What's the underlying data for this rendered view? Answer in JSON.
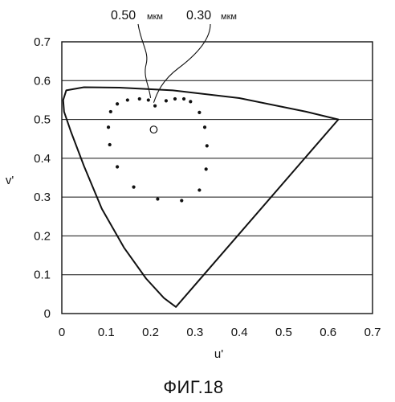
{
  "chart_data": {
    "type": "scatter",
    "title": "",
    "xlabel": "u'",
    "ylabel": "v'",
    "xlim": [
      0,
      0.7
    ],
    "ylim": [
      0,
      0.7
    ],
    "x_ticks": [
      "0",
      "0.1",
      "0.2",
      "0.3",
      "0.4",
      "0.5",
      "0.6",
      "0.7"
    ],
    "y_ticks": [
      "0",
      "0.1",
      "0.2",
      "0.3",
      "0.4",
      "0.5",
      "0.6",
      "0.7"
    ],
    "grid": "horizontal",
    "locus_boundary": [
      [
        0.257,
        0.017
      ],
      [
        0.23,
        0.04
      ],
      [
        0.19,
        0.09
      ],
      [
        0.14,
        0.17
      ],
      [
        0.09,
        0.27
      ],
      [
        0.05,
        0.38
      ],
      [
        0.02,
        0.47
      ],
      [
        0.005,
        0.52
      ],
      [
        0.003,
        0.55
      ],
      [
        0.01,
        0.575
      ],
      [
        0.05,
        0.583
      ],
      [
        0.13,
        0.582
      ],
      [
        0.25,
        0.575
      ],
      [
        0.4,
        0.555
      ],
      [
        0.55,
        0.52
      ],
      [
        0.623,
        0.5
      ],
      [
        0.257,
        0.017
      ]
    ],
    "dots": [
      [
        0.21,
        0.535
      ],
      [
        0.235,
        0.548
      ],
      [
        0.255,
        0.553
      ],
      [
        0.275,
        0.553
      ],
      [
        0.29,
        0.546
      ],
      [
        0.31,
        0.518
      ],
      [
        0.322,
        0.48
      ],
      [
        0.327,
        0.432
      ],
      [
        0.325,
        0.372
      ],
      [
        0.31,
        0.318
      ],
      [
        0.27,
        0.291
      ],
      [
        0.216,
        0.295
      ],
      [
        0.162,
        0.326
      ],
      [
        0.125,
        0.378
      ],
      [
        0.108,
        0.435
      ],
      [
        0.105,
        0.48
      ],
      [
        0.11,
        0.52
      ],
      [
        0.125,
        0.54
      ],
      [
        0.148,
        0.55
      ],
      [
        0.175,
        0.553
      ],
      [
        0.195,
        0.55
      ]
    ],
    "open_point": [
      0.207,
      0.474
    ],
    "annotations": [
      {
        "text": "0.50",
        "unit": "мкм",
        "target": [
          0.2,
          0.547
        ]
      },
      {
        "text": "0.30",
        "unit": "мкм",
        "target": [
          0.207,
          0.535
        ]
      }
    ]
  },
  "caption": "ФИГ.18"
}
